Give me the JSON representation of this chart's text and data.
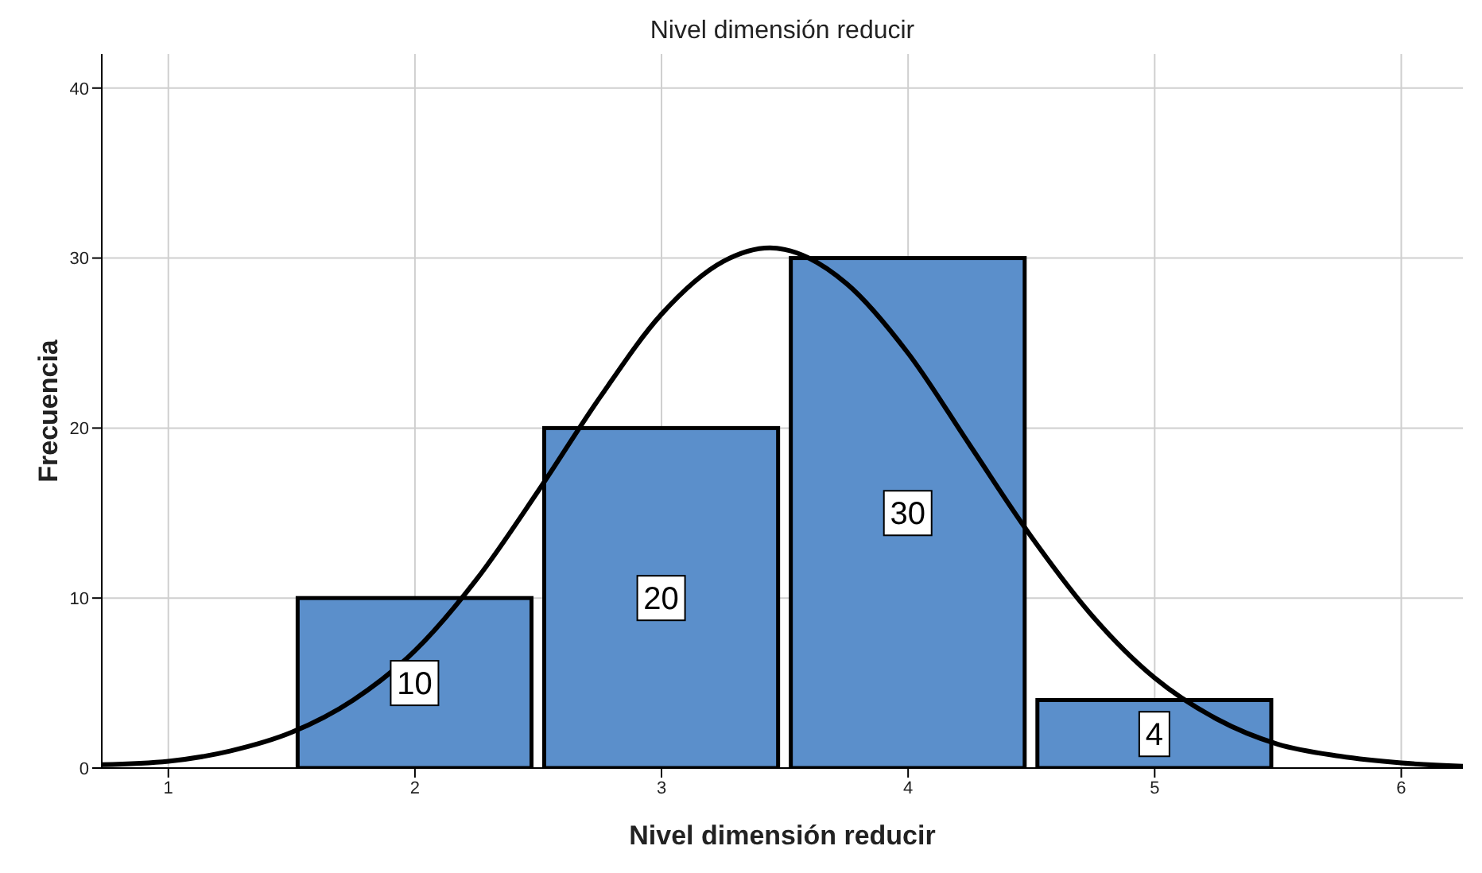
{
  "chart_data": {
    "type": "histogram",
    "title": "Nivel dimensión reducir",
    "xlabel": "Nivel dimensión reducir",
    "ylabel": "Frecuencia",
    "bins": [
      1.5,
      2.5,
      3.5,
      4.5,
      5.5
    ],
    "values": [
      10,
      20,
      30,
      4
    ],
    "value_labels": [
      "10",
      "20",
      "30",
      "4"
    ],
    "color": "#5b8fcb",
    "series": [
      {
        "type": "line",
        "color": "#000000",
        "x": [
          0.73,
          1,
          1.25,
          1.5,
          1.75,
          2,
          2.25,
          2.5,
          2.75,
          3,
          3.25,
          3.44,
          3.5,
          3.75,
          4,
          4.25,
          4.5,
          4.75,
          5,
          5.25,
          5.5,
          5.75,
          6,
          6.25
        ],
        "values": [
          0.2,
          0.4,
          1.0,
          2.1,
          4.0,
          6.9,
          11.1,
          16.3,
          21.8,
          26.7,
          29.8,
          30.6,
          30.5,
          28.5,
          24.4,
          19.0,
          13.6,
          8.9,
          5.3,
          2.9,
          1.4,
          0.7,
          0.3,
          0.1
        ]
      }
    ],
    "marker": "none",
    "line_style": "solid",
    "xlim": [
      0.73,
      6.25
    ],
    "xticks": [
      1,
      2,
      3,
      4,
      5,
      6
    ],
    "ylim": [
      0,
      42
    ],
    "yticks": [
      0,
      10,
      20,
      30,
      40
    ],
    "grid": true
  }
}
